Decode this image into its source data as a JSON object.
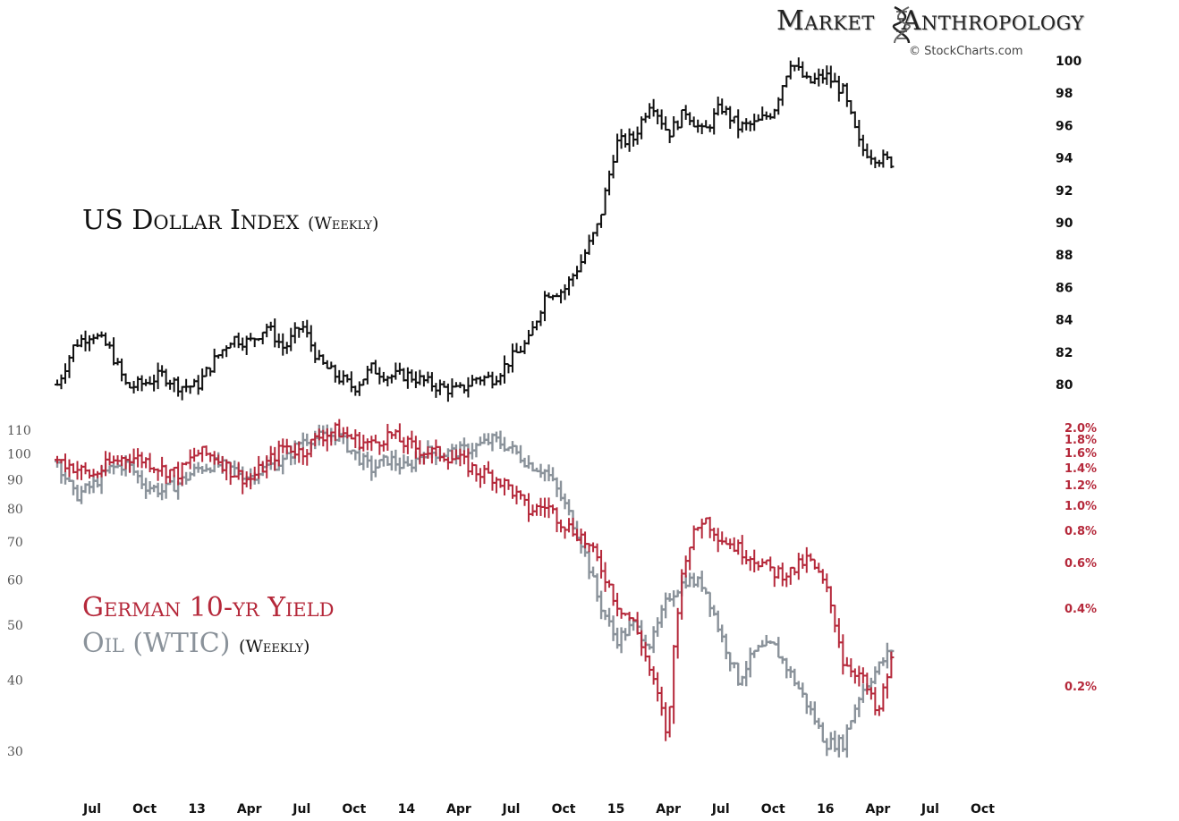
{
  "brand": {
    "title_left": "Market",
    "title_right": "Anthropology",
    "subtitle": "© StockCharts.com",
    "icon": "dna-helix-icon"
  },
  "labels": {
    "usd_name": "US Dollar Index",
    "usd_freq": "(Weekly)",
    "yield_name": "German 10-yr Yield",
    "oil_name": "Oil (WTIC)",
    "oil_freq": "(Weekly)"
  },
  "colors": {
    "usd": "#111111",
    "yield": "#b5283a",
    "oil": "#8a929a",
    "left_axis": "#555555",
    "right_axis_usd": "#111111",
    "right_axis_yield": "#b5283a"
  },
  "chart_data": [
    {
      "type": "ohlc",
      "name": "US Dollar Index",
      "frequency": "Weekly",
      "x_ticks": [
        "Jul",
        "Oct",
        "13",
        "Apr",
        "Jul",
        "Oct",
        "14",
        "Apr",
        "Jul",
        "Oct",
        "15",
        "Apr",
        "Jul",
        "Oct",
        "16",
        "Apr",
        "Jul",
        "Oct"
      ],
      "x_range": [
        "2012-05",
        "2016-11"
      ],
      "y_axis": "right",
      "y_ticks": [
        80,
        82,
        84,
        86,
        88,
        90,
        92,
        94,
        96,
        98,
        100
      ],
      "anchors": [
        [
          "2012-05",
          80
        ],
        [
          "2012-06",
          82.5
        ],
        [
          "2012-07",
          83.2
        ],
        [
          "2012-08",
          82.2
        ],
        [
          "2012-09",
          79.8
        ],
        [
          "2012-10",
          80.1
        ],
        [
          "2012-11",
          80.6
        ],
        [
          "2012-12",
          79.9
        ],
        [
          "2013-01",
          79.9
        ],
        [
          "2013-02",
          81.5
        ],
        [
          "2013-03",
          82.9
        ],
        [
          "2013-04",
          82.6
        ],
        [
          "2013-05",
          83.6
        ],
        [
          "2013-06",
          82.2
        ],
        [
          "2013-07",
          83.7
        ],
        [
          "2013-08",
          81.4
        ],
        [
          "2013-09",
          80.5
        ],
        [
          "2013-10",
          79.8
        ],
        [
          "2013-11",
          81
        ],
        [
          "2013-12",
          80.5
        ],
        [
          "2014-01",
          80.6
        ],
        [
          "2014-02",
          80.2
        ],
        [
          "2014-03",
          79.8
        ],
        [
          "2014-04",
          79.6
        ],
        [
          "2014-05",
          80.4
        ],
        [
          "2014-06",
          80.4
        ],
        [
          "2014-07",
          81.6
        ],
        [
          "2014-08",
          82.7
        ],
        [
          "2014-09",
          85.7
        ],
        [
          "2014-10",
          85.8
        ],
        [
          "2014-11",
          87.6
        ],
        [
          "2014-12",
          89.9
        ],
        [
          "2015-01",
          94.9
        ],
        [
          "2015-02",
          95.2
        ],
        [
          "2015-03",
          97.6
        ],
        [
          "2015-04",
          95.5
        ],
        [
          "2015-05",
          96.9
        ],
        [
          "2015-06",
          95.5
        ],
        [
          "2015-07",
          97.2
        ],
        [
          "2015-08",
          95.9
        ],
        [
          "2015-09",
          96.1
        ],
        [
          "2015-10",
          96.9
        ],
        [
          "2015-11",
          100
        ],
        [
          "2015-12",
          98.6
        ],
        [
          "2016-01",
          99.1
        ],
        [
          "2016-02",
          98.1
        ],
        [
          "2016-03",
          94.6
        ],
        [
          "2016-04",
          94
        ],
        [
          "2016-04-29",
          93.7
        ]
      ]
    },
    {
      "type": "ohlc",
      "name": "German 10-yr Yield",
      "frequency": "Weekly",
      "y_axis": "right",
      "y_scale": "log",
      "y_ticks": [
        "2.0%",
        "1.8%",
        "1.6%",
        "1.4%",
        "1.2%",
        "1.0%",
        "0.8%",
        "0.6%",
        "0.4%",
        "0.2%"
      ],
      "anchors": [
        [
          "2012-05",
          1.5
        ],
        [
          "2012-06",
          1.4
        ],
        [
          "2012-07",
          1.3
        ],
        [
          "2012-08",
          1.45
        ],
        [
          "2012-09",
          1.55
        ],
        [
          "2012-10",
          1.5
        ],
        [
          "2012-11",
          1.38
        ],
        [
          "2012-12",
          1.33
        ],
        [
          "2013-01",
          1.6
        ],
        [
          "2013-02",
          1.55
        ],
        [
          "2013-03",
          1.35
        ],
        [
          "2013-04",
          1.25
        ],
        [
          "2013-05",
          1.45
        ],
        [
          "2013-06",
          1.7
        ],
        [
          "2013-07",
          1.6
        ],
        [
          "2013-08",
          1.85
        ],
        [
          "2013-09",
          1.95
        ],
        [
          "2013-10",
          1.8
        ],
        [
          "2013-11",
          1.72
        ],
        [
          "2013-12",
          1.88
        ],
        [
          "2014-01",
          1.72
        ],
        [
          "2014-02",
          1.62
        ],
        [
          "2014-03",
          1.58
        ],
        [
          "2014-04",
          1.5
        ],
        [
          "2014-05",
          1.35
        ],
        [
          "2014-06",
          1.3
        ],
        [
          "2014-07",
          1.15
        ],
        [
          "2014-08",
          0.95
        ],
        [
          "2014-09",
          1.0
        ],
        [
          "2014-10",
          0.85
        ],
        [
          "2014-11",
          0.76
        ],
        [
          "2014-12",
          0.6
        ],
        [
          "2015-01",
          0.42
        ],
        [
          "2015-02",
          0.35
        ],
        [
          "2015-03",
          0.22
        ],
        [
          "2015-04",
          0.12
        ],
        [
          "2015-05",
          0.65
        ],
        [
          "2015-06",
          0.9
        ],
        [
          "2015-07",
          0.75
        ],
        [
          "2015-08",
          0.68
        ],
        [
          "2015-09",
          0.62
        ],
        [
          "2015-10",
          0.55
        ],
        [
          "2015-11",
          0.55
        ],
        [
          "2015-12",
          0.62
        ],
        [
          "2016-01",
          0.48
        ],
        [
          "2016-02",
          0.25
        ],
        [
          "2016-03",
          0.22
        ],
        [
          "2016-04",
          0.15
        ],
        [
          "2016-04-29",
          0.27
        ]
      ]
    },
    {
      "type": "ohlc",
      "name": "Oil (WTIC)",
      "frequency": "Weekly",
      "y_axis": "left",
      "y_scale": "log",
      "y_ticks": [
        110,
        100,
        90,
        80,
        70,
        60,
        50,
        40,
        30
      ],
      "anchors": [
        [
          "2012-05",
          97
        ],
        [
          "2012-06",
          84
        ],
        [
          "2012-07",
          88
        ],
        [
          "2012-08",
          94
        ],
        [
          "2012-09",
          96
        ],
        [
          "2012-10",
          88
        ],
        [
          "2012-11",
          86
        ],
        [
          "2012-12",
          89
        ],
        [
          "2013-01",
          94
        ],
        [
          "2013-02",
          96
        ],
        [
          "2013-03",
          94
        ],
        [
          "2013-04",
          91
        ],
        [
          "2013-05",
          95
        ],
        [
          "2013-06",
          97
        ],
        [
          "2013-07",
          106
        ],
        [
          "2013-08",
          107
        ],
        [
          "2013-09",
          108
        ],
        [
          "2013-10",
          100
        ],
        [
          "2013-11",
          94
        ],
        [
          "2013-12",
          98
        ],
        [
          "2014-01",
          94
        ],
        [
          "2014-02",
          101
        ],
        [
          "2014-03",
          100
        ],
        [
          "2014-04",
          101
        ],
        [
          "2014-05",
          103
        ],
        [
          "2014-06",
          106
        ],
        [
          "2014-07",
          102
        ],
        [
          "2014-08",
          96
        ],
        [
          "2014-09",
          93
        ],
        [
          "2014-10",
          82
        ],
        [
          "2014-11",
          70
        ],
        [
          "2014-12",
          55
        ],
        [
          "2015-01",
          47
        ],
        [
          "2015-02",
          50
        ],
        [
          "2015-03",
          46
        ],
        [
          "2015-04",
          56
        ],
        [
          "2015-05",
          60
        ],
        [
          "2015-06",
          59
        ],
        [
          "2015-07",
          48
        ],
        [
          "2015-08",
          40
        ],
        [
          "2015-09",
          45
        ],
        [
          "2015-10",
          46
        ],
        [
          "2015-11",
          41
        ],
        [
          "2015-12",
          36
        ],
        [
          "2016-01",
          31
        ],
        [
          "2016-02",
          31
        ],
        [
          "2016-03",
          38
        ],
        [
          "2016-04",
          42
        ],
        [
          "2016-04-29",
          46
        ]
      ]
    }
  ]
}
